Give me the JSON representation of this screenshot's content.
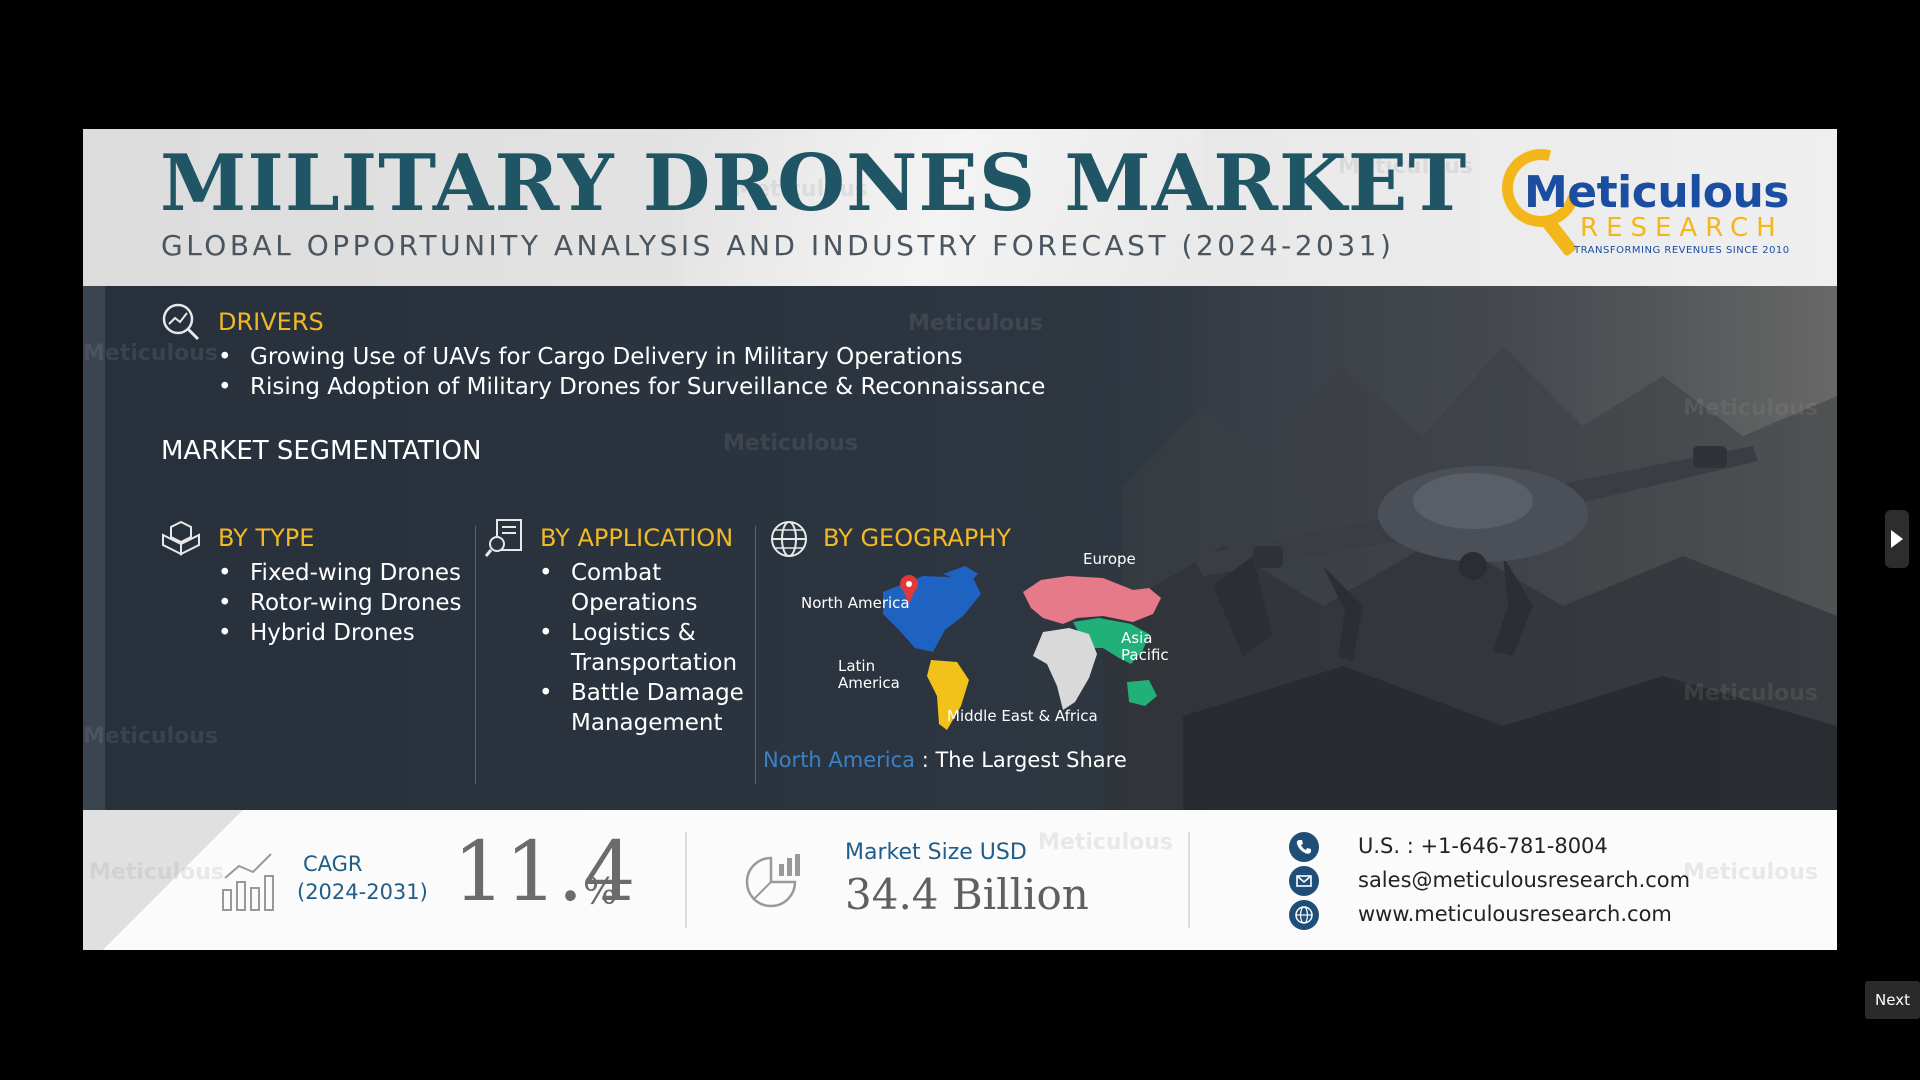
{
  "header": {
    "title": "MILITARY DRONES MARKET",
    "subtitle": "GLOBAL OPPORTUNITY ANALYSIS AND INDUSTRY FORECAST (2024-2031)",
    "logo": {
      "brand_line1": "Meticulous",
      "brand_line2": "RESEARCH",
      "tagline": "TRANSFORMING REVENUES SINCE 2010"
    }
  },
  "drivers": {
    "heading": "DRIVERS",
    "items": [
      "Growing Use of UAVs for Cargo Delivery in Military Operations",
      "Rising Adoption of Military Drones for Surveillance & Reconnaissance"
    ]
  },
  "segmentation": {
    "heading": "MARKET SEGMENTATION",
    "by_type": {
      "heading": "BY TYPE",
      "items": [
        "Fixed-wing Drones",
        "Rotor-wing Drones",
        "Hybrid Drones"
      ]
    },
    "by_application": {
      "heading": "BY APPLICATION",
      "items": [
        "Combat Operations",
        "Logistics & Transportation",
        "Battle Damage Management"
      ]
    },
    "by_geography": {
      "heading": "BY GEOGRAPHY",
      "regions": {
        "north_america": "North America",
        "europe": "Europe",
        "asia_pacific": "Asia Pacific",
        "latin_america": "Latin America",
        "mea": "Middle East & Africa"
      },
      "largest_region": "North America",
      "largest_suffix": " : The Largest Share"
    }
  },
  "footer": {
    "cagr_label": "CAGR",
    "cagr_period": "(2024-2031)",
    "cagr_value": "11.4",
    "cagr_unit": "%",
    "market_size_label": "Market Size USD",
    "market_size_value": "34.4 Billion",
    "phone": "U.S. : +1-646-781-8004",
    "email": "sales@meticulousresearch.com",
    "website": "www.meticulousresearch.com"
  },
  "watermark": "Meticulous",
  "nav": {
    "next_label": "Next"
  },
  "colors": {
    "title": "#1f5565",
    "accent_gold": "#f2b825",
    "accent_blue": "#215d88",
    "dark_bg": "#2a323d"
  }
}
